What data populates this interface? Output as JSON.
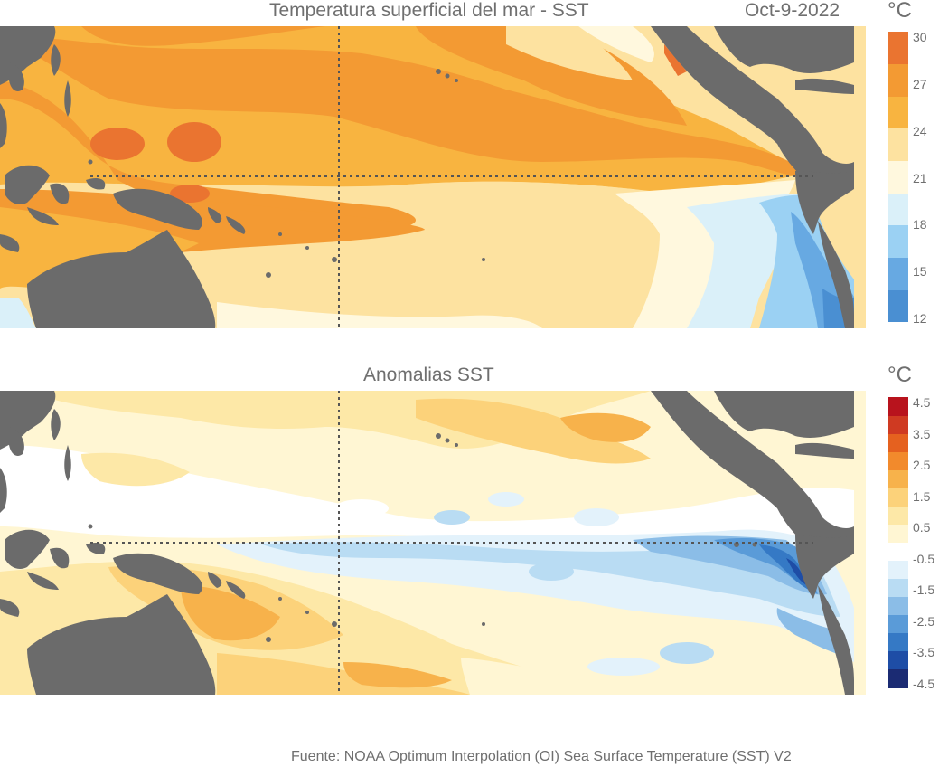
{
  "top_panel": {
    "title": "Temperatura superficial del mar - SST",
    "date": "Oct-9-2022",
    "unit": "°C",
    "colorbar": {
      "colors": [
        "#4a8fd2",
        "#67a9e2",
        "#9bd1f3",
        "#daf0f9",
        "#fff8de",
        "#fde2a0",
        "#f8b440",
        "#f39a33",
        "#ea7430"
      ],
      "ticks": [
        "12",
        "15",
        "18",
        "21",
        "24",
        "27",
        "30"
      ]
    }
  },
  "bottom_panel": {
    "title": "Anomalias SST",
    "unit": "°C",
    "colorbar": {
      "colors": [
        "#1b2b73",
        "#1e4da6",
        "#3579c5",
        "#5a9bd8",
        "#8bbde7",
        "#b9dcf3",
        "#e3f2fb",
        "#ffffff",
        "#fff6d3",
        "#fde8a7",
        "#fcd27a",
        "#f7b24b",
        "#f28a2c",
        "#e5611f",
        "#cf3a22",
        "#b8131d"
      ],
      "ticks": [
        "-4.5",
        "-3.5",
        "-2.5",
        "-1.5",
        "-0.5",
        "0.5",
        "1.5",
        "2.5",
        "3.5",
        "4.5"
      ]
    }
  },
  "source": "Fuente: NOAA Optimum Interpolation (OI) Sea Surface Temperature (SST) V2"
}
